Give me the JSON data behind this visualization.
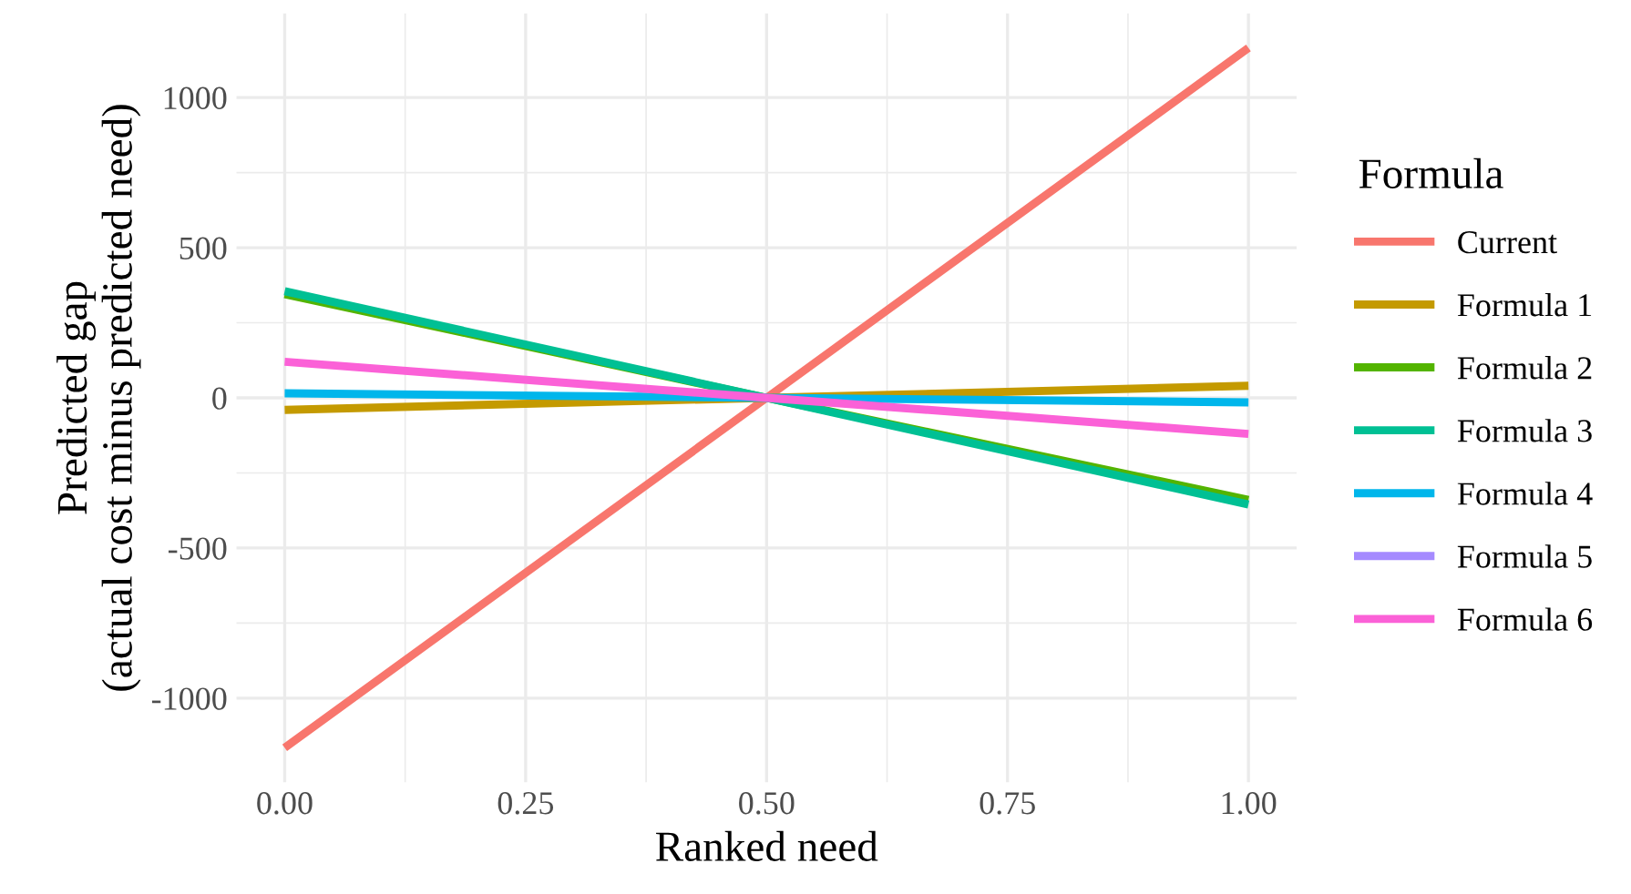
{
  "chart_data": {
    "type": "line",
    "xlabel": "Ranked need",
    "ylabel": "Predicted gap\n(actual cost minus predicted need)",
    "legend_title": "Formula",
    "x": [
      0,
      0.5,
      1
    ],
    "series": [
      {
        "name": "Current",
        "color": "#f8766d",
        "values": [
          -1165,
          0,
          1165
        ]
      },
      {
        "name": "Formula 1",
        "color": "#c49a00",
        "values": [
          -40,
          0,
          40
        ]
      },
      {
        "name": "Formula 2",
        "color": "#53b400",
        "values": [
          345,
          0,
          -340
        ]
      },
      {
        "name": "Formula 3",
        "color": "#00c094",
        "values": [
          355,
          0,
          -355
        ]
      },
      {
        "name": "Formula 4",
        "color": "#00b6eb",
        "values": [
          15,
          0,
          -15
        ]
      },
      {
        "name": "Formula 5",
        "color": "#a58aff",
        "values": [
          null,
          null,
          null
        ]
      },
      {
        "name": "Formula 6",
        "color": "#fb61d7",
        "values": [
          120,
          0,
          -120
        ]
      }
    ],
    "xlim": [
      -0.05,
      1.05
    ],
    "ylim": [
      -1280,
      1280
    ],
    "xticks": [
      {
        "value": 0,
        "label": "0.00"
      },
      {
        "value": 0.25,
        "label": "0.25"
      },
      {
        "value": 0.5,
        "label": "0.50"
      },
      {
        "value": 0.75,
        "label": "0.75"
      },
      {
        "value": 1,
        "label": "1.00"
      }
    ],
    "yticks": [
      {
        "value": -1000,
        "label": "-1000"
      },
      {
        "value": -500,
        "label": "-500"
      },
      0,
      500,
      1000
    ],
    "grid": true,
    "legend": "right",
    "line_style": "solid"
  }
}
